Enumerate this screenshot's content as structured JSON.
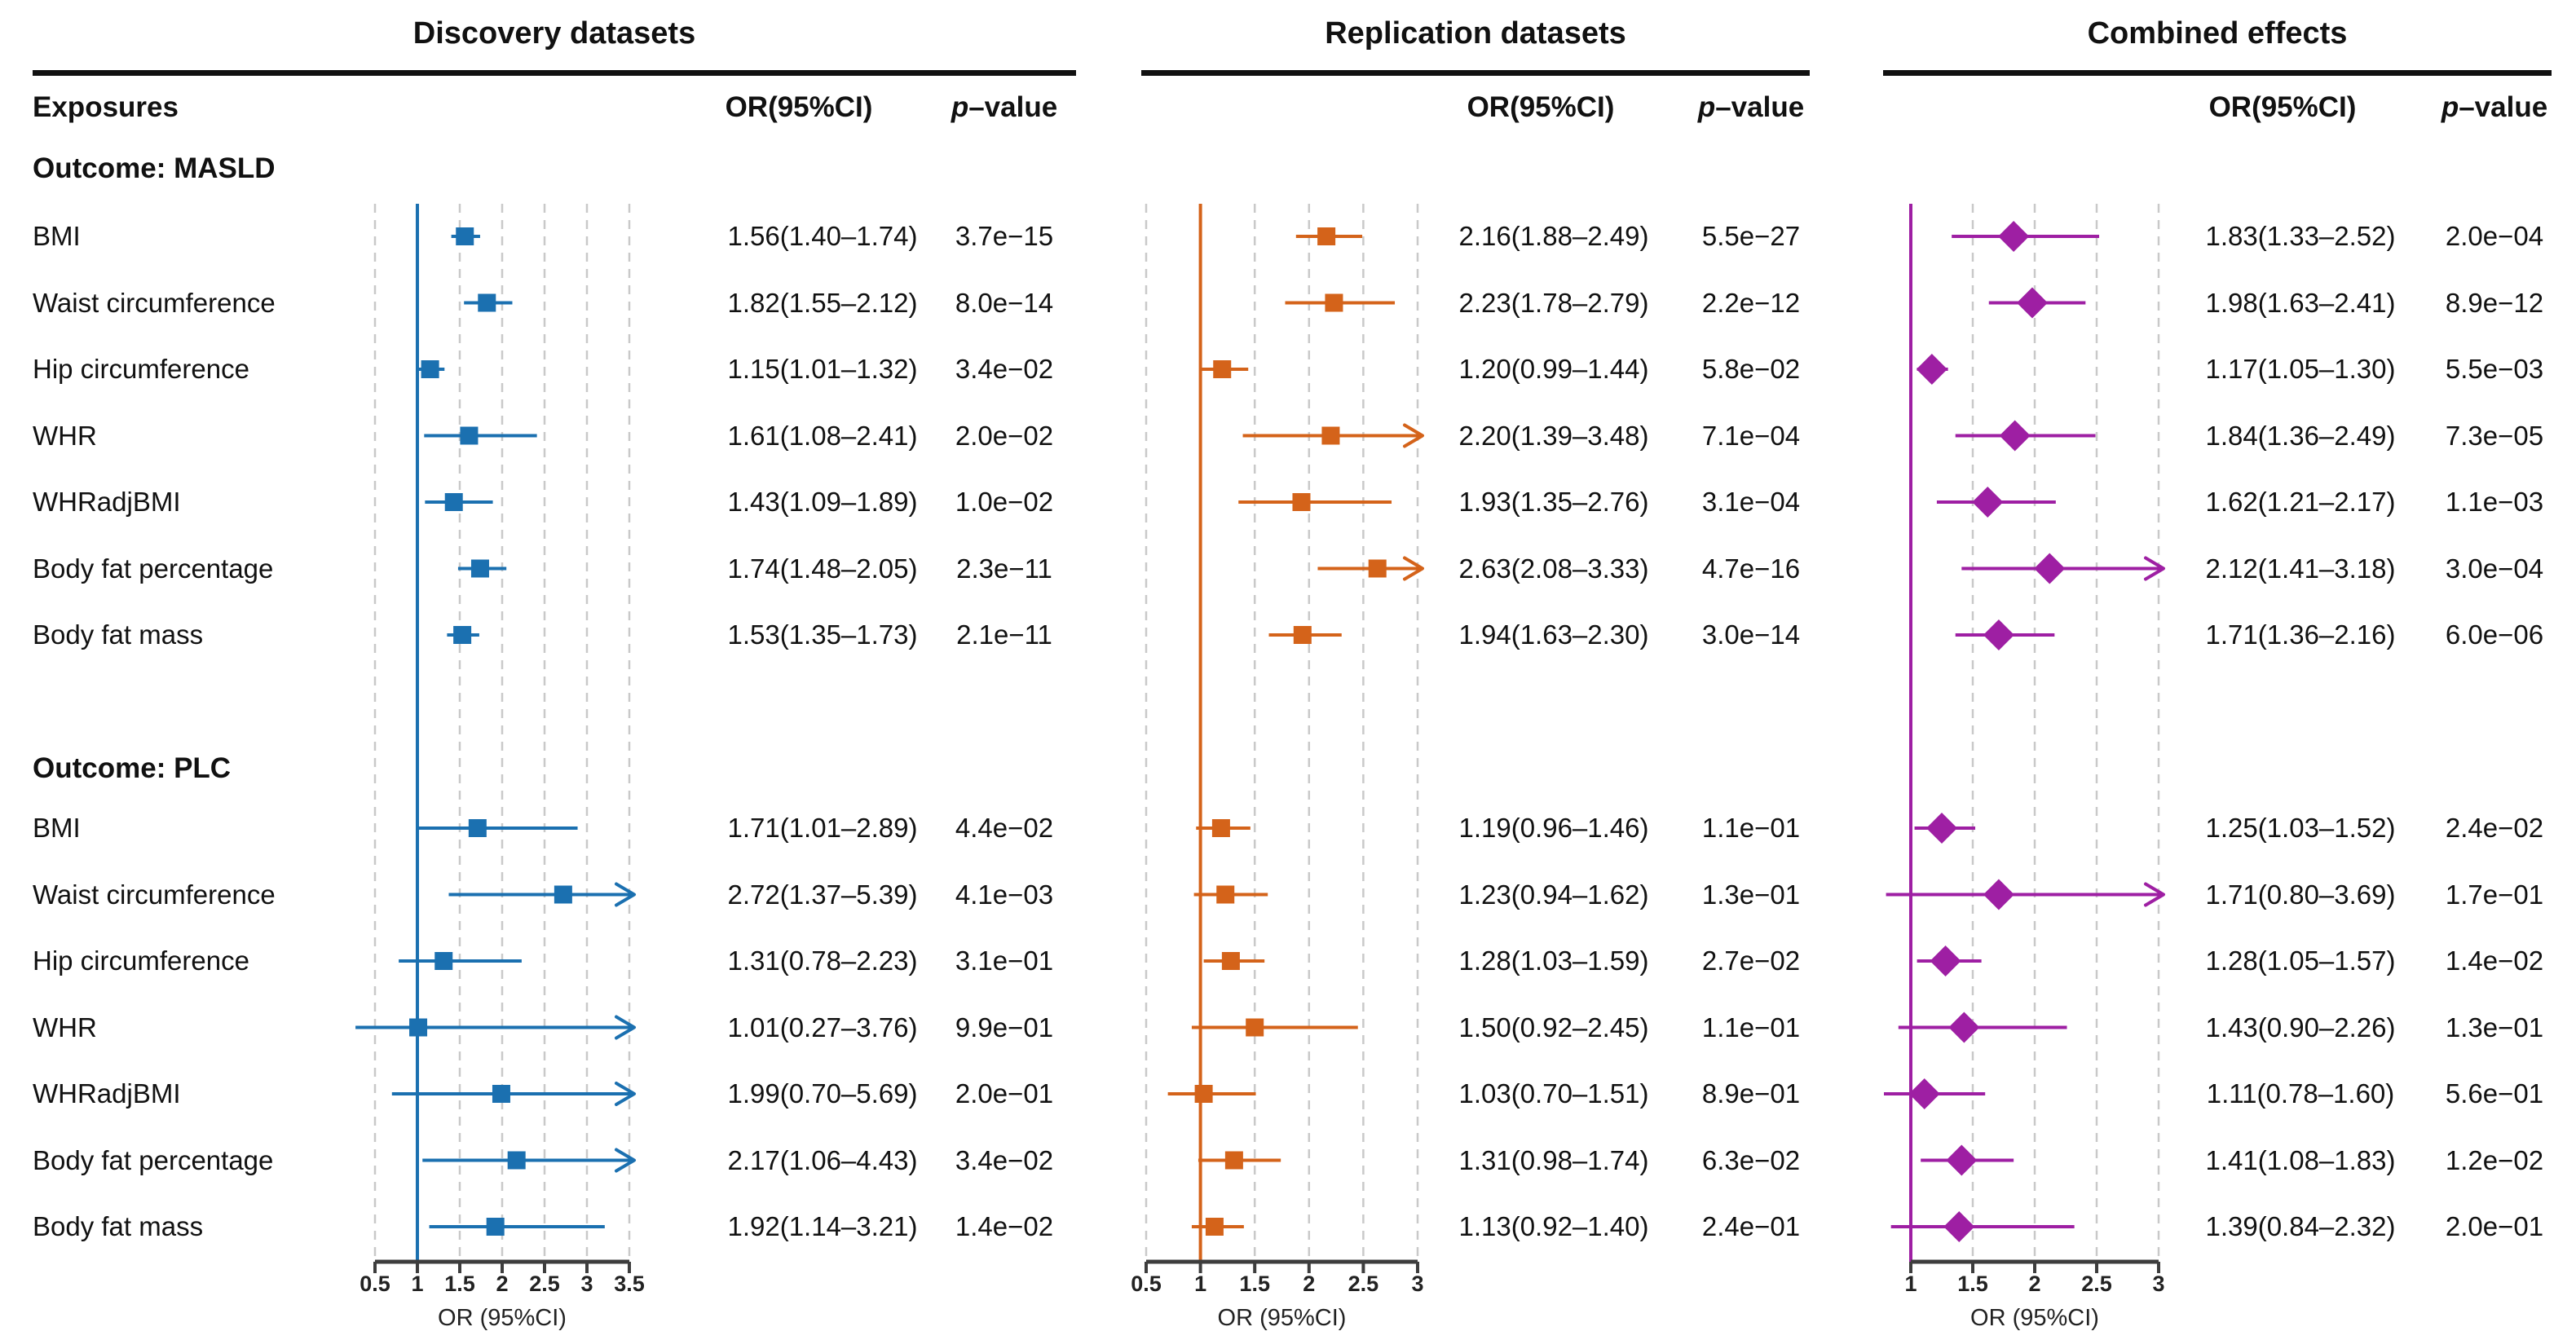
{
  "chart_data": {
    "type": "forest",
    "exposures_header": "Exposures",
    "axis_label": "OR (95%CI)",
    "p_header_italic": "p",
    "p_header_rest": "–value",
    "exposures": [
      "BMI",
      "Waist circumference",
      "Hip circumference",
      "WHR",
      "WHRadjBMI",
      "Body fat percentage",
      "Body fat mass"
    ],
    "outcomes": [
      "Outcome: MASLD",
      "Outcome: PLC"
    ],
    "panels": [
      {
        "title": "Discovery datasets",
        "or_header": "OR(95%CI)",
        "color": "#1b70b0",
        "marker": "square",
        "axis": {
          "min": 0.5,
          "max": 3.5,
          "ref": 1,
          "ticks": [
            0.5,
            1,
            1.5,
            2,
            2.5,
            3,
            3.5
          ],
          "tick_labels": [
            "0.5",
            "1",
            "1.5",
            "2",
            "2.5",
            "3",
            "3.5"
          ]
        },
        "sections": [
          {
            "outcome": "Outcome: MASLD",
            "rows": [
              {
                "or": 1.56,
                "lo": 1.4,
                "hi": 1.74,
                "or_text": "1.56(1.40–1.74)",
                "p_text": "3.7e−15"
              },
              {
                "or": 1.82,
                "lo": 1.55,
                "hi": 2.12,
                "or_text": "1.82(1.55–2.12)",
                "p_text": "8.0e−14"
              },
              {
                "or": 1.15,
                "lo": 1.01,
                "hi": 1.32,
                "or_text": "1.15(1.01–1.32)",
                "p_text": "3.4e−02"
              },
              {
                "or": 1.61,
                "lo": 1.08,
                "hi": 2.41,
                "or_text": "1.61(1.08–2.41)",
                "p_text": "2.0e−02"
              },
              {
                "or": 1.43,
                "lo": 1.09,
                "hi": 1.89,
                "or_text": "1.43(1.09–1.89)",
                "p_text": "1.0e−02"
              },
              {
                "or": 1.74,
                "lo": 1.48,
                "hi": 2.05,
                "or_text": "1.74(1.48–2.05)",
                "p_text": "2.3e−11"
              },
              {
                "or": 1.53,
                "lo": 1.35,
                "hi": 1.73,
                "or_text": "1.53(1.35–1.73)",
                "p_text": "2.1e−11"
              }
            ]
          },
          {
            "outcome": "Outcome: PLC",
            "rows": [
              {
                "or": 1.71,
                "lo": 1.01,
                "hi": 2.89,
                "or_text": "1.71(1.01–2.89)",
                "p_text": "4.4e−02"
              },
              {
                "or": 2.72,
                "lo": 1.37,
                "hi": 5.39,
                "or_text": "2.72(1.37–5.39)",
                "p_text": "4.1e−03"
              },
              {
                "or": 1.31,
                "lo": 0.78,
                "hi": 2.23,
                "or_text": "1.31(0.78–2.23)",
                "p_text": "3.1e−01"
              },
              {
                "or": 1.01,
                "lo": 0.27,
                "hi": 3.76,
                "or_text": "1.01(0.27–3.76)",
                "p_text": "9.9e−01"
              },
              {
                "or": 1.99,
                "lo": 0.7,
                "hi": 5.69,
                "or_text": "1.99(0.70–5.69)",
                "p_text": "2.0e−01"
              },
              {
                "or": 2.17,
                "lo": 1.06,
                "hi": 4.43,
                "or_text": "2.17(1.06–4.43)",
                "p_text": "3.4e−02"
              },
              {
                "or": 1.92,
                "lo": 1.14,
                "hi": 3.21,
                "or_text": "1.92(1.14–3.21)",
                "p_text": "1.4e−02"
              }
            ]
          }
        ]
      },
      {
        "title": "Replication datasets",
        "or_header": "OR(95%CI)",
        "color": "#d4631a",
        "marker": "square",
        "axis": {
          "min": 0.5,
          "max": 3,
          "ref": 1,
          "ticks": [
            0.5,
            1,
            1.5,
            2,
            2.5,
            3
          ],
          "tick_labels": [
            "0.5",
            "1",
            "1.5",
            "2",
            "2.5",
            "3"
          ]
        },
        "sections": [
          {
            "outcome": "Outcome: MASLD",
            "rows": [
              {
                "or": 2.16,
                "lo": 1.88,
                "hi": 2.49,
                "or_text": "2.16(1.88–2.49)",
                "p_text": "5.5e−27"
              },
              {
                "or": 2.23,
                "lo": 1.78,
                "hi": 2.79,
                "or_text": "2.23(1.78–2.79)",
                "p_text": "2.2e−12"
              },
              {
                "or": 1.2,
                "lo": 0.99,
                "hi": 1.44,
                "or_text": "1.20(0.99–1.44)",
                "p_text": "5.8e−02"
              },
              {
                "or": 2.2,
                "lo": 1.39,
                "hi": 3.48,
                "or_text": "2.20(1.39–3.48)",
                "p_text": "7.1e−04"
              },
              {
                "or": 1.93,
                "lo": 1.35,
                "hi": 2.76,
                "or_text": "1.93(1.35–2.76)",
                "p_text": "3.1e−04"
              },
              {
                "or": 2.63,
                "lo": 2.08,
                "hi": 3.33,
                "or_text": "2.63(2.08–3.33)",
                "p_text": "4.7e−16"
              },
              {
                "or": 1.94,
                "lo": 1.63,
                "hi": 2.3,
                "or_text": "1.94(1.63–2.30)",
                "p_text": "3.0e−14"
              }
            ]
          },
          {
            "outcome": "Outcome: PLC",
            "rows": [
              {
                "or": 1.19,
                "lo": 0.96,
                "hi": 1.46,
                "or_text": "1.19(0.96–1.46)",
                "p_text": "1.1e−01"
              },
              {
                "or": 1.23,
                "lo": 0.94,
                "hi": 1.62,
                "or_text": "1.23(0.94–1.62)",
                "p_text": "1.3e−01"
              },
              {
                "or": 1.28,
                "lo": 1.03,
                "hi": 1.59,
                "or_text": "1.28(1.03–1.59)",
                "p_text": "2.7e−02"
              },
              {
                "or": 1.5,
                "lo": 0.92,
                "hi": 2.45,
                "or_text": "1.50(0.92–2.45)",
                "p_text": "1.1e−01"
              },
              {
                "or": 1.03,
                "lo": 0.7,
                "hi": 1.51,
                "or_text": "1.03(0.70–1.51)",
                "p_text": "8.9e−01"
              },
              {
                "or": 1.31,
                "lo": 0.98,
                "hi": 1.74,
                "or_text": "1.31(0.98–1.74)",
                "p_text": "6.3e−02"
              },
              {
                "or": 1.13,
                "lo": 0.92,
                "hi": 1.4,
                "or_text": "1.13(0.92–1.40)",
                "p_text": "2.4e−01"
              }
            ]
          }
        ]
      },
      {
        "title": "Combined effects",
        "or_header": "OR(95%CI)",
        "color": "#9e1fa3",
        "marker": "diamond",
        "axis": {
          "min": 1,
          "max": 3,
          "ref": 1,
          "ticks": [
            1,
            1.5,
            2,
            2.5,
            3
          ],
          "tick_labels": [
            "1",
            "1.5",
            "2",
            "2.5",
            "3"
          ]
        },
        "sections": [
          {
            "outcome": "Outcome: MASLD",
            "rows": [
              {
                "or": 1.83,
                "lo": 1.33,
                "hi": 2.52,
                "or_text": "1.83(1.33–2.52)",
                "p_text": "2.0e−04"
              },
              {
                "or": 1.98,
                "lo": 1.63,
                "hi": 2.41,
                "or_text": "1.98(1.63–2.41)",
                "p_text": "8.9e−12"
              },
              {
                "or": 1.17,
                "lo": 1.05,
                "hi": 1.3,
                "or_text": "1.17(1.05–1.30)",
                "p_text": "5.5e−03"
              },
              {
                "or": 1.84,
                "lo": 1.36,
                "hi": 2.49,
                "or_text": "1.84(1.36–2.49)",
                "p_text": "7.3e−05"
              },
              {
                "or": 1.62,
                "lo": 1.21,
                "hi": 2.17,
                "or_text": "1.62(1.21–2.17)",
                "p_text": "1.1e−03"
              },
              {
                "or": 2.12,
                "lo": 1.41,
                "hi": 3.18,
                "or_text": "2.12(1.41–3.18)",
                "p_text": "3.0e−04"
              },
              {
                "or": 1.71,
                "lo": 1.36,
                "hi": 2.16,
                "or_text": "1.71(1.36–2.16)",
                "p_text": "6.0e−06"
              }
            ]
          },
          {
            "outcome": "Outcome: PLC",
            "rows": [
              {
                "or": 1.25,
                "lo": 1.03,
                "hi": 1.52,
                "or_text": "1.25(1.03–1.52)",
                "p_text": "2.4e−02"
              },
              {
                "or": 1.71,
                "lo": 0.8,
                "hi": 3.69,
                "or_text": "1.71(0.80–3.69)",
                "p_text": "1.7e−01"
              },
              {
                "or": 1.28,
                "lo": 1.05,
                "hi": 1.57,
                "or_text": "1.28(1.05–1.57)",
                "p_text": "1.4e−02"
              },
              {
                "or": 1.43,
                "lo": 0.9,
                "hi": 2.26,
                "or_text": "1.43(0.90–2.26)",
                "p_text": "1.3e−01"
              },
              {
                "or": 1.11,
                "lo": 0.78,
                "hi": 1.6,
                "or_text": "1.11(0.78–1.60)",
                "p_text": "5.6e−01"
              },
              {
                "or": 1.41,
                "lo": 1.08,
                "hi": 1.83,
                "or_text": "1.41(1.08–1.83)",
                "p_text": "1.2e−02"
              },
              {
                "or": 1.39,
                "lo": 0.84,
                "hi": 2.32,
                "or_text": "1.39(0.84–2.32)",
                "p_text": "2.0e−01"
              }
            ]
          }
        ]
      }
    ]
  }
}
